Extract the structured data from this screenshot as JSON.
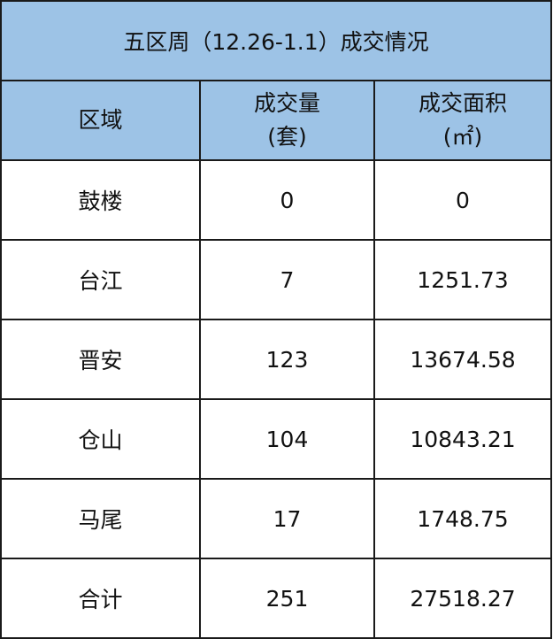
{
  "title": "五区周（12.26-1.1）成交情况",
  "header_color": "#9dc3e6",
  "headers": {
    "district": "区域",
    "volume_line1": "成交量",
    "volume_line2": "(套)",
    "area_line1": "成交面积",
    "area_line2": "(㎡)"
  },
  "rows": [
    {
      "district": "鼓楼",
      "volume": "0",
      "area": "0"
    },
    {
      "district": "台江",
      "volume": "7",
      "area": "1251.73"
    },
    {
      "district": "晋安",
      "volume": "123",
      "area": "13674.58"
    },
    {
      "district": "仓山",
      "volume": "104",
      "area": "10843.21"
    },
    {
      "district": "马尾",
      "volume": "17",
      "area": "1748.75"
    },
    {
      "district": "合计",
      "volume": "251",
      "area": "27518.27"
    }
  ]
}
